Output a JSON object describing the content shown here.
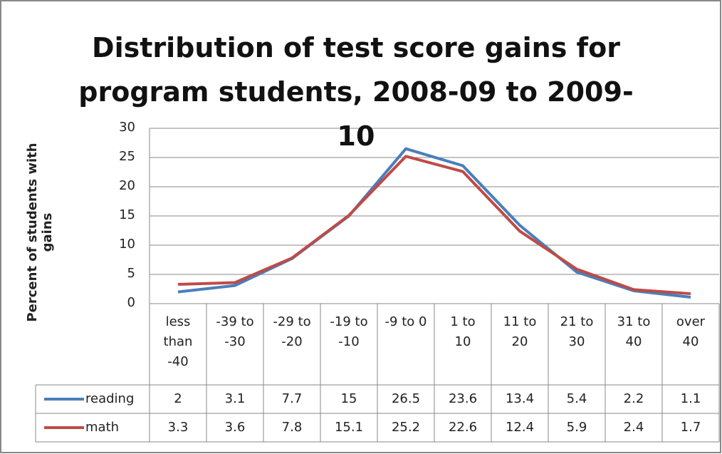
{
  "chart_data": {
    "type": "line",
    "title": "Distribution of test score gains for program students, 2008-09 to 2009-10",
    "y_label": "Percent of students with gains",
    "categories": [
      "less than -40",
      "-39 to -30",
      "-29 to -20",
      "-19 to -10",
      "-9 to 0",
      "1 to 10",
      "11 to 20",
      "21 to 30",
      "31 to 40",
      "over 40"
    ],
    "series": [
      {
        "name": "reading",
        "color": "#4a7ebb",
        "values": [
          2,
          3.1,
          7.7,
          15,
          26.5,
          23.6,
          13.4,
          5.4,
          2.2,
          1.1
        ]
      },
      {
        "name": "math",
        "color": "#be4b48",
        "values": [
          3.3,
          3.6,
          7.8,
          15.1,
          25.2,
          22.6,
          12.4,
          5.9,
          2.4,
          1.7
        ]
      }
    ],
    "ylim": [
      0,
      30
    ],
    "yticks": [
      0,
      5,
      10,
      15,
      20,
      25,
      30
    ],
    "grid": true
  }
}
